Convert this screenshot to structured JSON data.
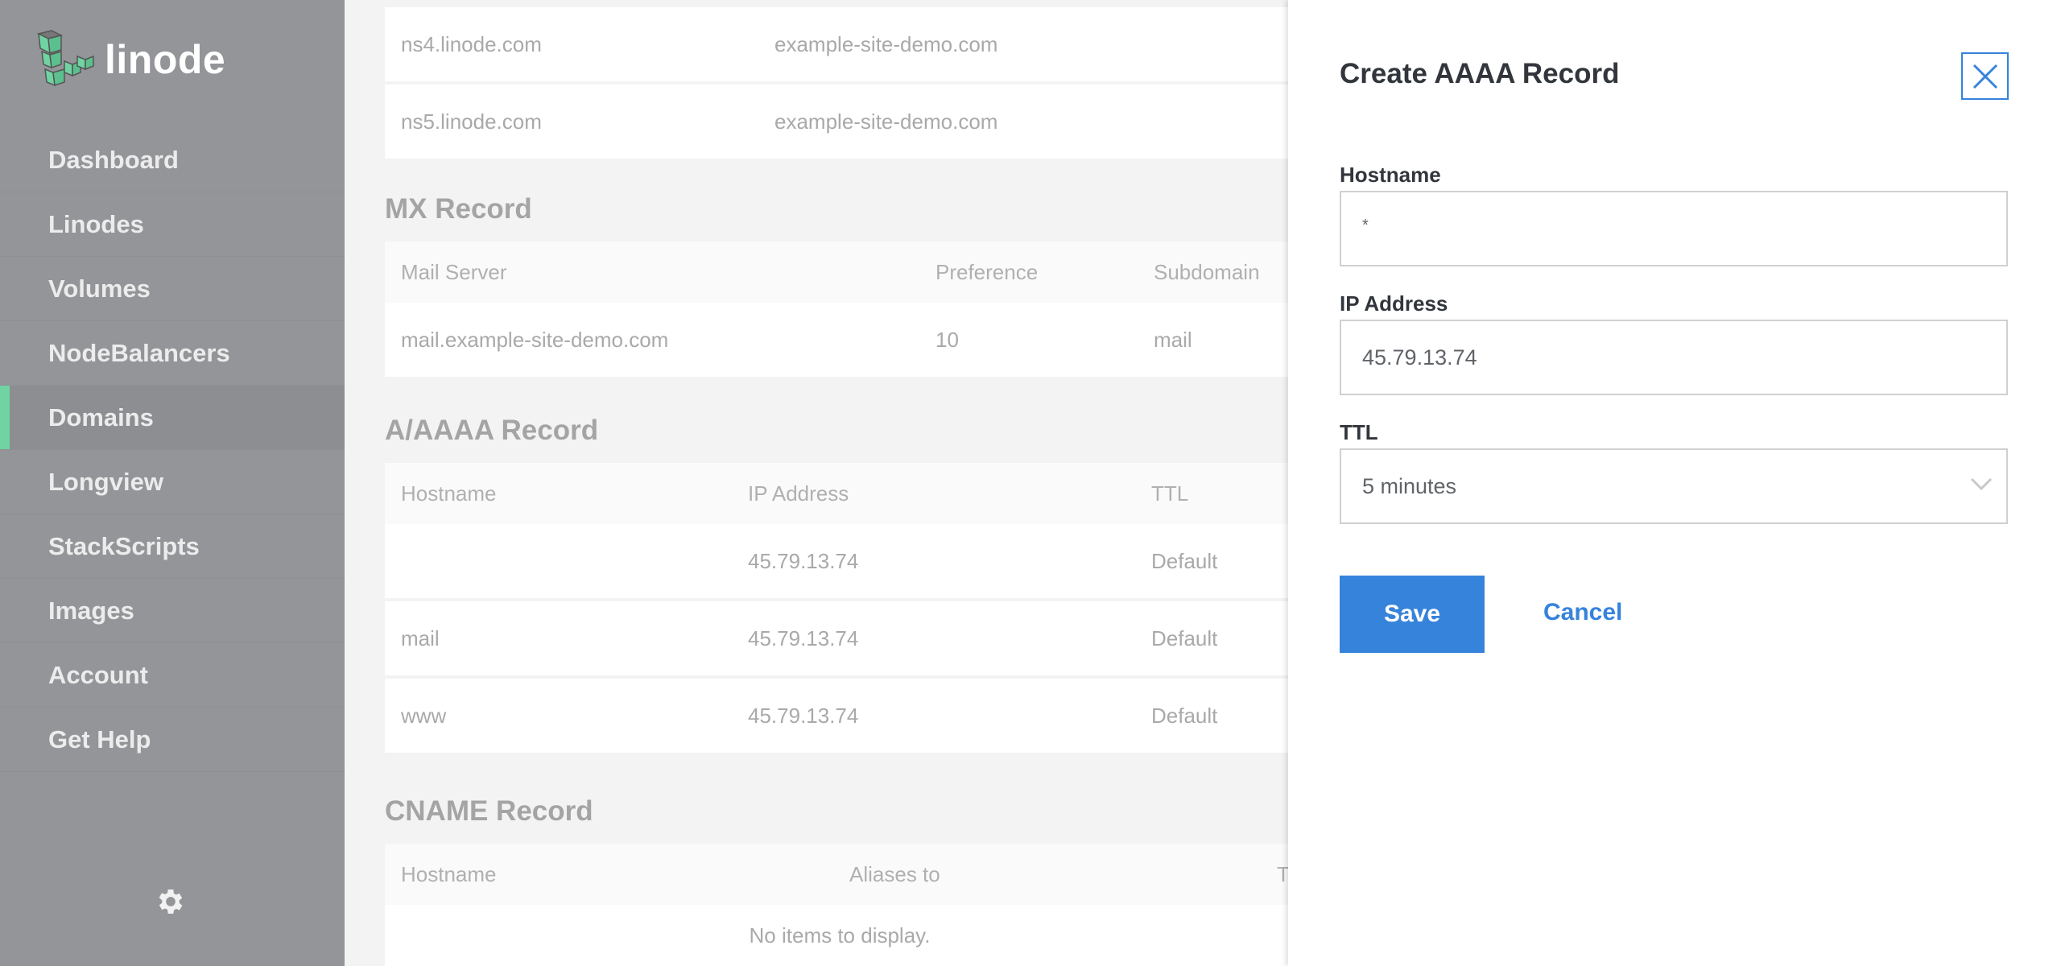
{
  "logo": {
    "text": "linode"
  },
  "sidebar": {
    "items": [
      {
        "label": "Dashboard"
      },
      {
        "label": "Linodes"
      },
      {
        "label": "Volumes"
      },
      {
        "label": "NodeBalancers"
      },
      {
        "label": "Domains",
        "active": true
      },
      {
        "label": "Longview"
      },
      {
        "label": "StackScripts"
      },
      {
        "label": "Images"
      },
      {
        "label": "Account"
      },
      {
        "label": "Get Help"
      }
    ],
    "settings_icon": "gear-icon"
  },
  "ns_table": {
    "rows": [
      [
        "ns4.linode.com",
        "example-site-demo.com"
      ],
      [
        "ns5.linode.com",
        "example-site-demo.com"
      ]
    ]
  },
  "mx": {
    "heading": "MX Record",
    "headers": [
      "Mail Server",
      "Preference",
      "Subdomain"
    ],
    "rows": [
      [
        "mail.example-site-demo.com",
        "10",
        "mail"
      ]
    ]
  },
  "a": {
    "heading": "A/AAAA Record",
    "headers": [
      "Hostname",
      "IP Address",
      "TTL"
    ],
    "rows": [
      [
        "",
        "45.79.13.74",
        "Default"
      ],
      [
        "mail",
        "45.79.13.74",
        "Default"
      ],
      [
        "www",
        "45.79.13.74",
        "Default"
      ]
    ]
  },
  "cname": {
    "heading": "CNAME Record",
    "headers": [
      "Hostname",
      "Aliases to",
      "T"
    ],
    "empty": "No items to display."
  },
  "drawer": {
    "title": "Create AAAA Record",
    "hostname_label": "Hostname",
    "hostname_value": "*",
    "ip_label": "IP Address",
    "ip_value": "45.79.13.74",
    "ttl_label": "TTL",
    "ttl_value": "5 minutes",
    "save": "Save",
    "cancel": "Cancel",
    "accent": "#3683dc"
  }
}
